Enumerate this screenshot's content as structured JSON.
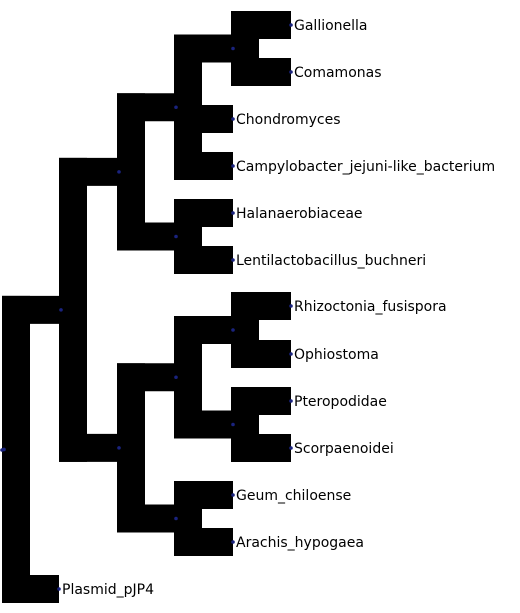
{
  "tree": {
    "branch_color": "#000000",
    "node_color": "#1a237e",
    "leaves": [
      {
        "id": "gallionella",
        "label": "Gallionella"
      },
      {
        "id": "comamonas",
        "label": "Comamonas"
      },
      {
        "id": "chondromyces",
        "label": "Chondromyces"
      },
      {
        "id": "campylobacter",
        "label": "Campylobacter_jejuni-like_bacterium"
      },
      {
        "id": "halanaerobiaceae",
        "label": "Halanaerobiaceae"
      },
      {
        "id": "lentilactobacillus",
        "label": "Lentilactobacillus_buchneri"
      },
      {
        "id": "rhizoctonia",
        "label": "Rhizoctonia_fusispora"
      },
      {
        "id": "ophiostoma",
        "label": "Ophiostoma"
      },
      {
        "id": "pteropodidae",
        "label": "Pteropodidae"
      },
      {
        "id": "scorpaenoidei",
        "label": "Scorpaenoidei"
      },
      {
        "id": "geum",
        "label": "Geum_chiloense"
      },
      {
        "id": "arachis",
        "label": "Arachis_hypogaea"
      },
      {
        "id": "plasmid",
        "label": "Plasmid_pJP4"
      }
    ]
  }
}
